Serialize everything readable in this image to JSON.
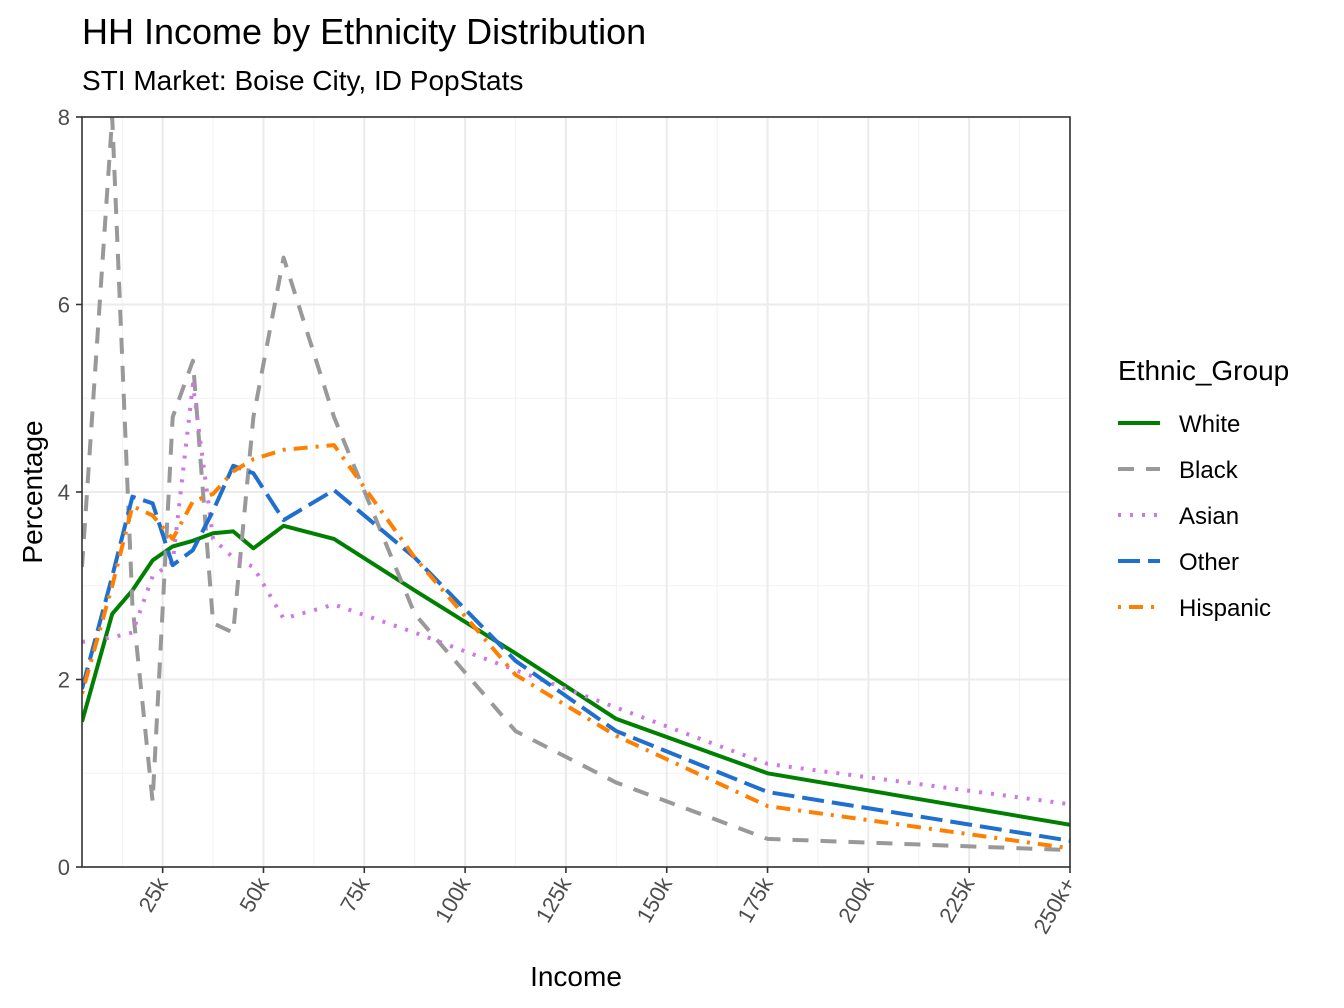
{
  "chart_data": {
    "type": "line",
    "title": "HH Income by Ethnicity Distribution",
    "subtitle": "STI Market: Boise City, ID PopStats",
    "xlabel": "Income",
    "ylabel": "Percentage",
    "xlim": [
      5,
      250
    ],
    "ylim": [
      0,
      8
    ],
    "x_ticks": [
      25,
      50,
      75,
      100,
      125,
      150,
      175,
      200,
      225,
      250
    ],
    "x_tick_labels": [
      "25k",
      "50k",
      "75k",
      "100k",
      "125k",
      "150k",
      "175k",
      "200k",
      "225k",
      "250k+"
    ],
    "y_ticks": [
      0,
      2,
      4,
      6,
      8
    ],
    "y_tick_labels": [
      "0",
      "2",
      "4",
      "6",
      "8"
    ],
    "x": [
      5,
      12.5,
      17.5,
      22.5,
      27.5,
      32.5,
      37.5,
      42.5,
      47.5,
      55,
      67.5,
      87.5,
      112.5,
      137.5,
      175,
      250
    ],
    "grid": true,
    "legend": {
      "title": "Ethnic_Group",
      "position": "right"
    },
    "series": [
      {
        "name": "White",
        "color": "#008000",
        "dash": "solid",
        "values": [
          1.55,
          2.7,
          2.95,
          3.27,
          3.42,
          3.48,
          3.56,
          3.58,
          3.4,
          3.64,
          3.5,
          2.95,
          2.28,
          1.58,
          1.0,
          0.45
        ]
      },
      {
        "name": "Black",
        "color": "#999999",
        "dash": "dashed",
        "values": [
          3.2,
          8.0,
          2.8,
          0.7,
          4.8,
          5.4,
          2.6,
          2.5,
          4.8,
          6.5,
          4.8,
          2.7,
          1.45,
          0.9,
          0.3,
          0.18
        ]
      },
      {
        "name": "Asian",
        "color": "#cc79e6",
        "dash": "dotted",
        "values": [
          2.4,
          2.45,
          2.5,
          3.1,
          3.25,
          5.15,
          3.5,
          3.3,
          3.2,
          2.65,
          2.8,
          2.5,
          2.1,
          1.7,
          1.1,
          0.67
        ]
      },
      {
        "name": "Other",
        "color": "#1f6fd1",
        "dash": "longdash",
        "values": [
          1.9,
          3.1,
          3.95,
          3.88,
          3.22,
          3.38,
          3.8,
          4.28,
          4.2,
          3.7,
          4.02,
          3.3,
          2.2,
          1.45,
          0.8,
          0.28
        ]
      },
      {
        "name": "Hispanic",
        "color": "#ff7f00",
        "dash": "dotdash",
        "values": [
          1.85,
          3.0,
          3.85,
          3.75,
          3.5,
          3.9,
          3.98,
          4.22,
          4.35,
          4.45,
          4.5,
          3.3,
          2.05,
          1.4,
          0.65,
          0.2
        ]
      }
    ]
  }
}
